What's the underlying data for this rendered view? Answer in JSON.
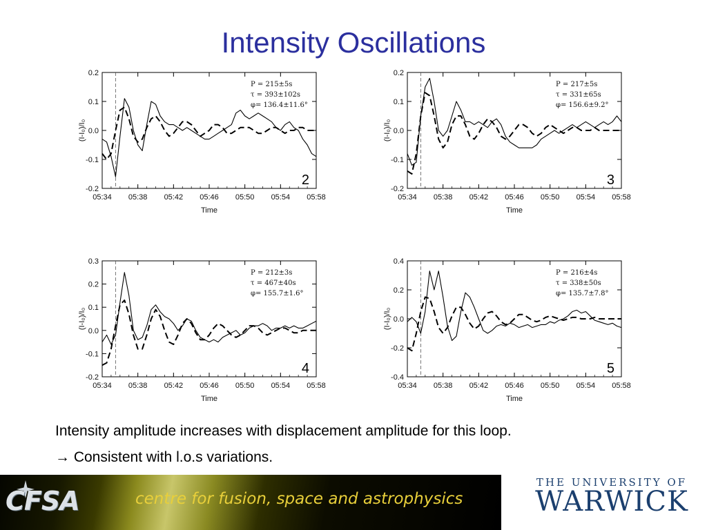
{
  "title": "Intensity Oscillations",
  "text": {
    "line1": "Intensity amplitude increases with displacement amplitude for this loop.",
    "line2": "→ Consistent with l.o.s variations."
  },
  "footer": {
    "logo": "CFSA",
    "banner": "centre for fusion, space and astrophysics",
    "university_top": "THE UNIVERSITY OF",
    "university_main": "WARWICK"
  },
  "chart_data": [
    {
      "type": "line",
      "panel_label": "2",
      "xlabel": "Time",
      "ylabel": "(I-I₀)/I₀",
      "xlim": [
        0,
        24
      ],
      "ylim": [
        -0.2,
        0.2
      ],
      "xticks": [
        "05:34",
        "05:38",
        "05:42",
        "05:46",
        "05:50",
        "05:54",
        "05:58"
      ],
      "yticks": [
        "0.2",
        "0.1",
        "0.0",
        "-0.1",
        "-0.2"
      ],
      "event_x": 1.5,
      "annotations": [
        "P = 215±5s",
        "τ = 393±102s",
        "φ= 136.4±11.6°"
      ],
      "observed": {
        "x": [
          0,
          0.5,
          1,
          1.5,
          2,
          2.5,
          3,
          3.5,
          4,
          4.5,
          5,
          5.5,
          6,
          6.5,
          7,
          7.5,
          8,
          8.5,
          9,
          9.5,
          10,
          10.5,
          11,
          11.5,
          12,
          12.5,
          13,
          13.5,
          14,
          14.5,
          15,
          15.5,
          16,
          16.5,
          17,
          17.5,
          18,
          18.5,
          19,
          19.5,
          20,
          20.5,
          21,
          21.5,
          22,
          22.5,
          23,
          23.5,
          24
        ],
        "y": [
          -0.03,
          -0.04,
          -0.09,
          -0.16,
          -0.02,
          0.11,
          0.08,
          0.0,
          -0.05,
          -0.07,
          0.02,
          0.1,
          0.09,
          0.05,
          0.03,
          0.02,
          0.02,
          0.01,
          0.0,
          0.01,
          0.0,
          -0.01,
          -0.02,
          -0.03,
          -0.03,
          -0.02,
          -0.01,
          0.0,
          0.01,
          0.02,
          0.06,
          0.07,
          0.05,
          0.04,
          0.05,
          0.06,
          0.05,
          0.04,
          0.03,
          0.01,
          0.0,
          0.02,
          0.03,
          0.01,
          0.0,
          -0.03,
          -0.05,
          -0.08,
          -0.09
        ]
      },
      "fit": {
        "x": [
          0,
          0.5,
          1,
          1.5,
          2,
          2.5,
          3,
          3.5,
          4,
          4.5,
          5,
          5.5,
          6,
          6.5,
          7,
          7.5,
          8,
          8.5,
          9,
          9.5,
          10,
          10.5,
          11,
          11.5,
          12,
          12.5,
          13,
          13.5,
          14,
          14.5,
          15,
          15.5,
          16,
          16.5,
          17,
          17.5,
          18,
          18.5,
          19,
          19.5,
          20,
          20.5,
          21,
          21.5,
          22,
          22.5,
          23,
          23.5,
          24
        ],
        "y": [
          -0.08,
          -0.1,
          -0.08,
          0.0,
          0.07,
          0.08,
          0.04,
          -0.02,
          -0.04,
          -0.03,
          0.01,
          0.04,
          0.05,
          0.03,
          0.0,
          -0.02,
          -0.01,
          0.01,
          0.03,
          0.03,
          0.02,
          0.0,
          -0.02,
          -0.01,
          0.0,
          0.02,
          0.02,
          0.01,
          -0.01,
          -0.01,
          0.0,
          0.01,
          0.01,
          0.01,
          0.0,
          -0.01,
          -0.01,
          0.0,
          0.01,
          0.01,
          0.0,
          -0.01,
          0.0,
          0.0,
          0.01,
          0.01,
          0.0,
          0.0,
          0.0
        ]
      }
    },
    {
      "type": "line",
      "panel_label": "3",
      "xlabel": "Time",
      "ylabel": "(I-I₀)/I₀",
      "xlim": [
        0,
        24
      ],
      "ylim": [
        -0.2,
        0.2
      ],
      "xticks": [
        "05:34",
        "05:38",
        "05:42",
        "05:46",
        "05:50",
        "05:54",
        "05:58"
      ],
      "yticks": [
        "0.2",
        "0.1",
        "0.0",
        "-0.1",
        "-0.2"
      ],
      "event_x": 1.5,
      "annotations": [
        "P = 217±5s",
        "τ = 331±65s",
        "φ= 156.6±9.2°"
      ],
      "observed": {
        "x": [
          0,
          0.5,
          1,
          1.5,
          2,
          2.5,
          3,
          3.5,
          4,
          4.5,
          5,
          5.5,
          6,
          6.5,
          7,
          7.5,
          8,
          8.5,
          9,
          9.5,
          10,
          10.5,
          11,
          11.5,
          12,
          12.5,
          13,
          13.5,
          14,
          14.5,
          15,
          15.5,
          16,
          16.5,
          17,
          17.5,
          18,
          18.5,
          19,
          19.5,
          20,
          20.5,
          21,
          21.5,
          22,
          22.5,
          23,
          23.5,
          24
        ],
        "y": [
          -0.08,
          -0.12,
          -0.11,
          0.05,
          0.15,
          0.18,
          0.1,
          0.0,
          -0.02,
          0.0,
          0.05,
          0.1,
          0.07,
          0.03,
          0.03,
          0.02,
          0.03,
          0.02,
          0.01,
          0.03,
          0.04,
          0.02,
          -0.02,
          -0.04,
          -0.05,
          -0.06,
          -0.06,
          -0.06,
          -0.06,
          -0.05,
          -0.03,
          -0.02,
          -0.01,
          0.0,
          -0.01,
          0.0,
          0.01,
          0.02,
          0.01,
          0.02,
          0.03,
          0.02,
          0.01,
          0.02,
          0.03,
          0.02,
          0.03,
          0.05,
          0.03
        ]
      },
      "fit": {
        "x": [
          0,
          0.5,
          1,
          1.5,
          2,
          2.5,
          3,
          3.5,
          4,
          4.5,
          5,
          5.5,
          6,
          6.5,
          7,
          7.5,
          8,
          8.5,
          9,
          9.5,
          10,
          10.5,
          11,
          11.5,
          12,
          12.5,
          13,
          13.5,
          14,
          14.5,
          15,
          15.5,
          16,
          16.5,
          17,
          17.5,
          18,
          18.5,
          19,
          19.5,
          20,
          20.5,
          21,
          21.5,
          22,
          22.5,
          23,
          23.5,
          24
        ],
        "y": [
          -0.14,
          -0.15,
          -0.08,
          0.05,
          0.13,
          0.12,
          0.05,
          -0.03,
          -0.06,
          -0.04,
          0.02,
          0.05,
          0.05,
          0.02,
          -0.02,
          -0.03,
          -0.01,
          0.02,
          0.04,
          0.03,
          0.01,
          -0.02,
          -0.03,
          -0.02,
          0.0,
          0.02,
          0.02,
          0.01,
          -0.01,
          -0.02,
          -0.01,
          0.01,
          0.02,
          0.01,
          0.0,
          -0.01,
          0.0,
          0.01,
          0.01,
          0.0,
          0.0,
          0.0,
          0.01,
          0.0,
          0.0,
          0.0,
          0.0,
          0.0,
          0.0
        ]
      }
    },
    {
      "type": "line",
      "panel_label": "4",
      "xlabel": "Time",
      "ylabel": "(I-I₀)/I₀",
      "xlim": [
        0,
        24
      ],
      "ylim": [
        -0.2,
        0.3
      ],
      "xticks": [
        "05:34",
        "05:38",
        "05:42",
        "05:46",
        "05:50",
        "05:54",
        "05:58"
      ],
      "yticks": [
        "0.3",
        "0.2",
        "0.1",
        "0.0",
        "-0.1",
        "-0.2"
      ],
      "event_x": 1.5,
      "annotations": [
        "P = 212±3s",
        "τ = 467±40s",
        "φ= 155.7±1.6°"
      ],
      "observed": {
        "x": [
          0,
          0.5,
          1,
          1.5,
          2,
          2.5,
          3,
          3.5,
          4,
          4.5,
          5,
          5.5,
          6,
          6.5,
          7,
          7.5,
          8,
          8.5,
          9,
          9.5,
          10,
          10.5,
          11,
          11.5,
          12,
          12.5,
          13,
          13.5,
          14,
          14.5,
          15,
          15.5,
          16,
          16.5,
          17,
          17.5,
          18,
          18.5,
          19,
          19.5,
          20,
          20.5,
          21,
          21.5,
          22,
          22.5,
          23,
          23.5,
          24
        ],
        "y": [
          -0.05,
          -0.02,
          -0.06,
          -0.02,
          0.12,
          0.25,
          0.15,
          0.0,
          -0.04,
          -0.03,
          0.02,
          0.09,
          0.11,
          0.08,
          0.06,
          0.05,
          0.03,
          0.0,
          0.02,
          0.05,
          0.04,
          0.0,
          -0.03,
          -0.04,
          -0.05,
          -0.04,
          -0.05,
          -0.03,
          -0.02,
          -0.01,
          0.0,
          -0.02,
          -0.01,
          0.01,
          0.02,
          0.02,
          0.03,
          0.02,
          0.0,
          0.01,
          0.01,
          0.02,
          0.01,
          0.02,
          0.01,
          0.01,
          0.02,
          0.03,
          0.04
        ]
      },
      "fit": {
        "x": [
          0,
          0.5,
          1,
          1.5,
          2,
          2.5,
          3,
          3.5,
          4,
          4.5,
          5,
          5.5,
          6,
          6.5,
          7,
          7.5,
          8,
          8.5,
          9,
          9.5,
          10,
          10.5,
          11,
          11.5,
          12,
          12.5,
          13,
          13.5,
          14,
          14.5,
          15,
          15.5,
          16,
          16.5,
          17,
          17.5,
          18,
          18.5,
          19,
          19.5,
          20,
          20.5,
          21,
          21.5,
          22,
          22.5,
          23,
          23.5,
          24
        ],
        "y": [
          -0.15,
          -0.14,
          -0.08,
          0.02,
          0.11,
          0.13,
          0.07,
          -0.02,
          -0.08,
          -0.08,
          -0.02,
          0.05,
          0.09,
          0.06,
          0.0,
          -0.05,
          -0.06,
          -0.02,
          0.03,
          0.05,
          0.03,
          -0.01,
          -0.04,
          -0.04,
          -0.02,
          0.01,
          0.03,
          0.02,
          0.0,
          -0.02,
          -0.03,
          -0.02,
          0.0,
          0.02,
          0.02,
          0.01,
          -0.01,
          -0.02,
          -0.01,
          0.0,
          0.01,
          0.01,
          0.0,
          -0.01,
          -0.01,
          0.0,
          0.0,
          0.0,
          0.0
        ]
      }
    },
    {
      "type": "line",
      "panel_label": "5",
      "xlabel": "Time",
      "ylabel": "(I-I₀)/I₀",
      "xlim": [
        0,
        24
      ],
      "ylim": [
        -0.4,
        0.4
      ],
      "xticks": [
        "05:34",
        "05:38",
        "05:42",
        "05:46",
        "05:50",
        "05:54",
        "05:58"
      ],
      "yticks": [
        "0.4",
        "0.2",
        "0.0",
        "-0.2",
        "-0.4"
      ],
      "event_x": 1.5,
      "annotations": [
        "P = 216±4s",
        "τ = 338±50s",
        "φ= 135.7±7.8°"
      ],
      "observed": {
        "x": [
          0,
          0.5,
          1,
          1.5,
          2,
          2.5,
          3,
          3.5,
          4,
          4.5,
          5,
          5.5,
          6,
          6.5,
          7,
          7.5,
          8,
          8.5,
          9,
          9.5,
          10,
          10.5,
          11,
          11.5,
          12,
          12.5,
          13,
          13.5,
          14,
          14.5,
          15,
          15.5,
          16,
          16.5,
          17,
          17.5,
          18,
          18.5,
          19,
          19.5,
          20,
          20.5,
          21,
          21.5,
          22,
          22.5,
          23,
          23.5,
          24
        ],
        "y": [
          -0.02,
          0.01,
          -0.02,
          -0.1,
          0.05,
          0.33,
          0.2,
          0.33,
          0.15,
          -0.05,
          -0.15,
          -0.12,
          0.05,
          0.18,
          0.15,
          0.08,
          0.0,
          -0.08,
          -0.1,
          -0.08,
          -0.05,
          -0.04,
          -0.05,
          -0.03,
          -0.04,
          -0.06,
          -0.05,
          -0.04,
          -0.06,
          -0.05,
          -0.04,
          -0.04,
          -0.02,
          -0.03,
          -0.01,
          0.0,
          0.02,
          0.05,
          0.06,
          0.04,
          0.05,
          0.02,
          -0.01,
          -0.02,
          -0.03,
          -0.04,
          -0.03,
          -0.05,
          -0.06
        ]
      },
      "fit": {
        "x": [
          0,
          0.5,
          1,
          1.5,
          2,
          2.5,
          3,
          3.5,
          4,
          4.5,
          5,
          5.5,
          6,
          6.5,
          7,
          7.5,
          8,
          8.5,
          9,
          9.5,
          10,
          10.5,
          11,
          11.5,
          12,
          12.5,
          13,
          13.5,
          14,
          14.5,
          15,
          15.5,
          16,
          16.5,
          17,
          17.5,
          18,
          18.5,
          19,
          19.5,
          20,
          20.5,
          21,
          21.5,
          22,
          22.5,
          23,
          23.5,
          24
        ],
        "y": [
          -0.2,
          -0.22,
          -0.1,
          0.05,
          0.15,
          0.14,
          0.05,
          -0.06,
          -0.1,
          -0.06,
          0.02,
          0.08,
          0.08,
          0.03,
          -0.03,
          -0.07,
          -0.05,
          0.0,
          0.04,
          0.05,
          0.02,
          -0.02,
          -0.04,
          -0.03,
          0.0,
          0.03,
          0.03,
          0.01,
          -0.01,
          -0.02,
          -0.01,
          0.01,
          0.02,
          0.01,
          0.0,
          -0.01,
          0.0,
          0.01,
          0.01,
          0.0,
          0.0,
          0.0,
          0.01,
          0.0,
          0.0,
          0.0,
          0.0,
          0.0,
          0.0
        ]
      }
    }
  ]
}
